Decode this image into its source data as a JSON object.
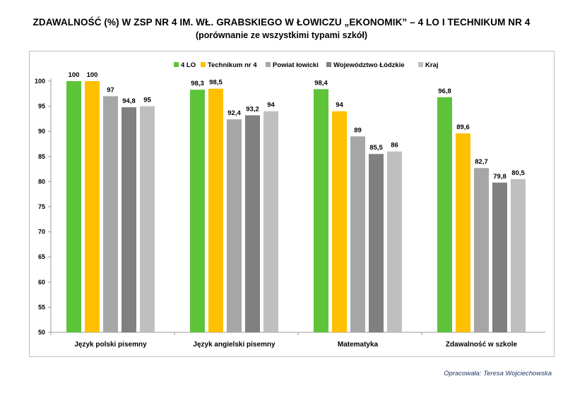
{
  "chart_data": {
    "type": "bar",
    "title": "ZDAWALNOŚĆ (%) W ZSP NR 4 IM. WŁ. GRABSKIEGO W ŁOWICZU „EKONOMIK” – 4 LO I TECHNIKUM NR 4",
    "subtitle": "(porównanie ze wszystkimi typami szkół)",
    "categories": [
      "Język polski pisemny",
      "Język angielski pisemny",
      "Matematyka",
      "Zdawalność w szkole"
    ],
    "series": [
      {
        "name": "4 LO",
        "color": "#5dc43a",
        "values": [
          100,
          98.3,
          98.4,
          96.8
        ],
        "labels": [
          "100",
          "98,3",
          "98,4",
          "96,8"
        ]
      },
      {
        "name": "Technikum nr 4",
        "color": "#ffc000",
        "values": [
          100,
          98.5,
          94,
          89.6
        ],
        "labels": [
          "100",
          "98,5",
          "94",
          "89,6"
        ]
      },
      {
        "name": "Powiat łowicki",
        "color": "#a6a6a6",
        "values": [
          97,
          92.4,
          89,
          82.7
        ],
        "labels": [
          "97",
          "92,4",
          "89",
          "82,7"
        ]
      },
      {
        "name": "Województwo Łódzkie",
        "color": "#808080",
        "values": [
          94.8,
          93.2,
          85.5,
          79.8
        ],
        "labels": [
          "94,8",
          "93,2",
          "85,5",
          "79,8"
        ]
      },
      {
        "name": "Kraj",
        "color": "#bfbfbf",
        "values": [
          95,
          94,
          86,
          80.5
        ],
        "labels": [
          "95",
          "94",
          "86",
          "80,5"
        ]
      }
    ],
    "ylim": [
      50,
      100
    ],
    "yticks": [
      50,
      55,
      60,
      65,
      70,
      75,
      80,
      85,
      90,
      95,
      100
    ],
    "grid": false,
    "legend_position": "top-right"
  },
  "credit": "Opracowała: Teresa Wojciechowska"
}
